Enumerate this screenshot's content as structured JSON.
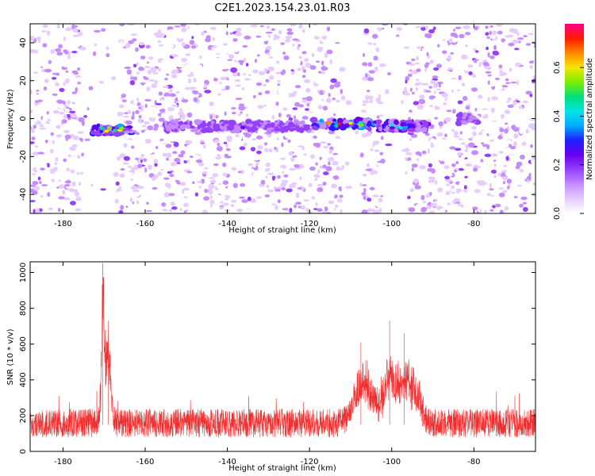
{
  "figure_title": "C2E1.2023.154.23.01.R03",
  "colors": {
    "snr_line": "#f03030",
    "spectrogram_palette": [
      "#ffffff",
      "#e6ccff",
      "#c58cff",
      "#9640ff",
      "#6a00f0",
      "#1e1eff",
      "#00aaff",
      "#00e5e5",
      "#00e07a",
      "#7aee00",
      "#f5e600",
      "#ff8800",
      "#ff1a00",
      "#ff0088"
    ]
  },
  "chart_data": [
    {
      "type": "heatmap",
      "xlabel": "Height of straight line (km)",
      "ylabel": "Frequency (Hz)",
      "xlim": [
        -188,
        -65
      ],
      "ylim": [
        -50,
        50
      ],
      "xticks": [
        -180,
        -160,
        -140,
        -120,
        -100,
        -80
      ],
      "yticks": [
        -40,
        -20,
        0,
        20,
        40
      ],
      "colorbar": {
        "label": "Normalized spectral amplitude",
        "range": [
          0,
          0.78
        ],
        "ticks": [
          0.0,
          0.2,
          0.4,
          0.6
        ]
      },
      "features": [
        {
          "x_range": [
            -173,
            -163
          ],
          "freq": -6,
          "peak": 0.62
        },
        {
          "x_range": [
            -155,
            -120
          ],
          "freq": -4,
          "peak": 0.25
        },
        {
          "x_range": [
            -119,
            -104
          ],
          "freq": -3,
          "peak": 0.72
        },
        {
          "x_range": [
            -104,
            -91
          ],
          "freq": -4,
          "peak": 0.45
        },
        {
          "x_range": [
            -84,
            -79
          ],
          "freq": 0,
          "peak": 0.22
        }
      ],
      "quiet_bands_x": [
        [
          -175,
          -167
        ],
        [
          -102,
          -97
        ],
        [
          -112,
          -107
        ]
      ]
    },
    {
      "type": "line",
      "xlabel": "Height of straight line (km)",
      "ylabel": "SNR (10 * v/v)",
      "xlim": [
        -188,
        -65
      ],
      "ylim": [
        0,
        1060
      ],
      "xticks": [
        -180,
        -160,
        -140,
        -120,
        -100,
        -80
      ],
      "yticks": [
        0,
        200,
        400,
        600,
        800,
        1000
      ],
      "baseline": 150,
      "peaks": [
        {
          "x": -170.3,
          "y": 1050
        },
        {
          "x": -169.0,
          "y": 730
        },
        {
          "x": -107.5,
          "y": 610
        },
        {
          "x": -100.5,
          "y": 730
        },
        {
          "x": -97.0,
          "y": 660
        }
      ]
    }
  ]
}
